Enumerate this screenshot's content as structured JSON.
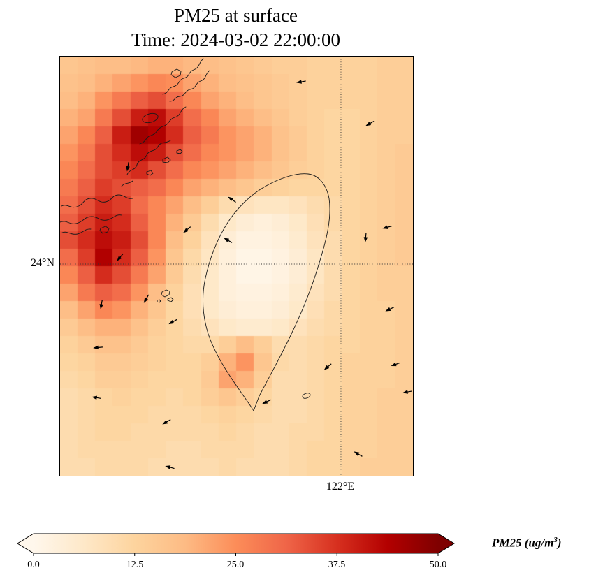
{
  "title": {
    "line1": "PM25 at surface",
    "line2": "Time: 2024-03-02 22:00:00"
  },
  "axes": {
    "ytick_label": "24°N",
    "xtick_label": "122°E"
  },
  "colorbar": {
    "ticks": [
      "0.0",
      "12.5",
      "25.0",
      "37.5",
      "50.0"
    ],
    "label_prefix": "PM25 (ug/m",
    "label_sup": "3",
    "label_suffix": ")",
    "vmin": 0,
    "vmax": 50
  },
  "chart_data": {
    "type": "heatmap",
    "title": "PM25 at surface",
    "subtitle": "Time: 2024-03-02 22:00:00",
    "variable": "PM25",
    "units": "ug/m3",
    "vmin": 0,
    "vmax": 50,
    "colorbar_ticks": [
      0.0,
      12.5,
      25.0,
      37.5,
      50.0
    ],
    "colormap": {
      "name": "OrRd",
      "stops": [
        [
          0.0,
          "#fff7ec"
        ],
        [
          0.125,
          "#fee8c8"
        ],
        [
          0.25,
          "#fdd49e"
        ],
        [
          0.375,
          "#fdbb84"
        ],
        [
          0.5,
          "#fc8d59"
        ],
        [
          0.625,
          "#ef6548"
        ],
        [
          0.75,
          "#d7301f"
        ],
        [
          0.875,
          "#b30000"
        ],
        [
          1.0,
          "#7f0000"
        ]
      ]
    },
    "gridlines": {
      "lat": {
        "label": "24°N",
        "y_frac": 0.495
      },
      "lon": {
        "label": "122°E",
        "x_frac": 0.796
      }
    },
    "grid": {
      "rows": 24,
      "cols": 20,
      "values": [
        [
          16,
          17,
          18,
          18,
          19,
          20,
          20,
          19,
          18,
          17,
          16,
          15,
          14,
          14,
          13,
          13,
          13,
          13,
          14,
          14
        ],
        [
          17,
          18,
          20,
          22,
          24,
          26,
          25,
          22,
          20,
          18,
          17,
          16,
          15,
          14,
          13,
          13,
          13,
          13,
          14,
          14
        ],
        [
          18,
          20,
          24,
          28,
          32,
          34,
          30,
          26,
          22,
          20,
          18,
          16,
          15,
          14,
          13,
          13,
          13,
          13,
          14,
          14
        ],
        [
          20,
          22,
          28,
          34,
          40,
          42,
          36,
          30,
          26,
          22,
          20,
          18,
          16,
          14,
          13,
          12,
          12,
          13,
          14,
          14
        ],
        [
          22,
          26,
          32,
          40,
          46,
          44,
          38,
          32,
          28,
          24,
          22,
          20,
          17,
          15,
          13,
          12,
          12,
          13,
          14,
          14
        ],
        [
          24,
          28,
          34,
          38,
          42,
          40,
          34,
          30,
          26,
          24,
          22,
          20,
          17,
          15,
          13,
          12,
          12,
          13,
          14,
          15
        ],
        [
          26,
          30,
          34,
          36,
          38,
          34,
          30,
          26,
          24,
          22,
          20,
          18,
          16,
          14,
          13,
          12,
          12,
          13,
          14,
          15
        ],
        [
          28,
          32,
          36,
          34,
          32,
          30,
          26,
          22,
          20,
          18,
          16,
          14,
          13,
          12,
          12,
          12,
          12,
          13,
          14,
          15
        ],
        [
          30,
          34,
          38,
          36,
          30,
          26,
          22,
          18,
          14,
          10,
          8,
          7,
          7,
          8,
          10,
          11,
          12,
          13,
          14,
          15
        ],
        [
          32,
          36,
          40,
          38,
          32,
          26,
          20,
          15,
          10,
          6,
          4,
          3,
          4,
          6,
          9,
          11,
          12,
          13,
          14,
          15
        ],
        [
          34,
          38,
          42,
          40,
          34,
          26,
          18,
          13,
          8,
          4,
          2,
          2,
          3,
          5,
          8,
          10,
          12,
          13,
          14,
          15
        ],
        [
          30,
          36,
          44,
          38,
          32,
          24,
          16,
          11,
          7,
          3,
          1,
          1,
          2,
          4,
          7,
          10,
          12,
          13,
          14,
          15
        ],
        [
          26,
          32,
          38,
          34,
          28,
          22,
          15,
          10,
          6,
          3,
          1,
          1,
          2,
          4,
          7,
          10,
          12,
          13,
          14,
          14
        ],
        [
          22,
          28,
          32,
          30,
          24,
          18,
          13,
          9,
          6,
          3,
          2,
          2,
          3,
          5,
          8,
          10,
          12,
          13,
          14,
          14
        ],
        [
          18,
          22,
          26,
          24,
          20,
          16,
          12,
          9,
          6,
          4,
          3,
          3,
          4,
          6,
          9,
          11,
          12,
          13,
          13,
          14
        ],
        [
          15,
          18,
          20,
          20,
          17,
          14,
          12,
          10,
          8,
          6,
          5,
          5,
          6,
          8,
          10,
          11,
          12,
          13,
          13,
          14
        ],
        [
          13,
          15,
          17,
          17,
          15,
          13,
          12,
          11,
          11,
          14,
          18,
          14,
          10,
          10,
          11,
          12,
          12,
          13,
          13,
          14
        ],
        [
          12,
          13,
          15,
          15,
          14,
          13,
          12,
          12,
          14,
          20,
          24,
          16,
          11,
          10,
          11,
          12,
          13,
          13,
          13,
          14
        ],
        [
          11,
          12,
          14,
          14,
          13,
          12,
          12,
          12,
          15,
          22,
          20,
          14,
          10,
          10,
          11,
          12,
          13,
          13,
          13,
          14
        ],
        [
          10,
          11,
          12,
          13,
          12,
          12,
          11,
          12,
          14,
          16,
          14,
          12,
          10,
          10,
          11,
          12,
          13,
          13,
          14,
          14
        ],
        [
          10,
          11,
          12,
          12,
          12,
          11,
          11,
          11,
          12,
          13,
          12,
          11,
          10,
          10,
          11,
          12,
          13,
          13,
          14,
          14
        ],
        [
          10,
          11,
          12,
          12,
          11,
          11,
          11,
          11,
          11,
          12,
          11,
          10,
          10,
          11,
          11,
          12,
          13,
          13,
          14,
          14
        ],
        [
          10,
          11,
          11,
          11,
          11,
          11,
          10,
          10,
          11,
          11,
          11,
          10,
          10,
          11,
          12,
          12,
          13,
          13,
          14,
          14
        ],
        [
          10,
          10,
          11,
          11,
          11,
          10,
          10,
          10,
          10,
          11,
          10,
          10,
          10,
          11,
          12,
          12,
          13,
          14,
          14,
          14
        ]
      ]
    },
    "wind_arrows": [
      {
        "x": 0.671,
        "y": 0.062,
        "angle_deg": 170
      },
      {
        "x": 0.867,
        "y": 0.165,
        "angle_deg": 150
      },
      {
        "x": 0.19,
        "y": 0.273,
        "angle_deg": 100
      },
      {
        "x": 0.477,
        "y": 0.335,
        "angle_deg": 215
      },
      {
        "x": 0.915,
        "y": 0.41,
        "angle_deg": 165
      },
      {
        "x": 0.35,
        "y": 0.42,
        "angle_deg": 140
      },
      {
        "x": 0.865,
        "y": 0.442,
        "angle_deg": 95
      },
      {
        "x": 0.162,
        "y": 0.487,
        "angle_deg": 130
      },
      {
        "x": 0.465,
        "y": 0.433,
        "angle_deg": 210
      },
      {
        "x": 0.115,
        "y": 0.602,
        "angle_deg": 100
      },
      {
        "x": 0.238,
        "y": 0.587,
        "angle_deg": 120
      },
      {
        "x": 0.309,
        "y": 0.638,
        "angle_deg": 150
      },
      {
        "x": 0.923,
        "y": 0.607,
        "angle_deg": 155
      },
      {
        "x": 0.095,
        "y": 0.695,
        "angle_deg": 175
      },
      {
        "x": 0.749,
        "y": 0.747,
        "angle_deg": 140
      },
      {
        "x": 0.939,
        "y": 0.738,
        "angle_deg": 160
      },
      {
        "x": 0.091,
        "y": 0.812,
        "angle_deg": 190
      },
      {
        "x": 0.291,
        "y": 0.877,
        "angle_deg": 150
      },
      {
        "x": 0.574,
        "y": 0.828,
        "angle_deg": 155
      },
      {
        "x": 0.972,
        "y": 0.802,
        "angle_deg": 170
      },
      {
        "x": 0.299,
        "y": 0.977,
        "angle_deg": 195
      },
      {
        "x": 0.834,
        "y": 0.943,
        "angle_deg": 210
      }
    ]
  }
}
